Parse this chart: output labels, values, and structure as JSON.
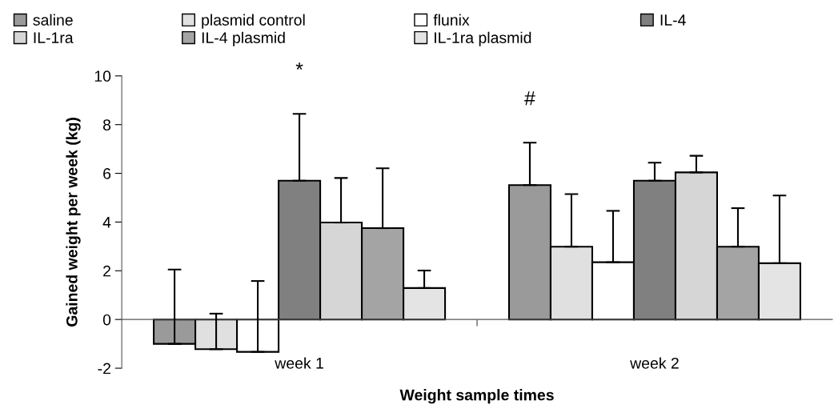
{
  "chart_data": {
    "type": "bar",
    "xlabel": "Weight sample times",
    "ylabel": "Gained weight per week (kg)",
    "categories": [
      "week 1",
      "week 2"
    ],
    "ylim": [
      -2,
      10
    ],
    "yticks": [
      -2,
      0,
      2,
      4,
      6,
      8,
      10
    ],
    "grid": false,
    "legend": "top",
    "series": [
      {
        "name": "saline",
        "color": "#9a9a9a",
        "values": [
          -1.0,
          5.52
        ],
        "errors": [
          [
            -1.0,
            2.05
          ],
          [
            5.52,
            7.26
          ]
        ]
      },
      {
        "name": "plasmid control",
        "color": "#e0e0e0",
        "values": [
          -1.22,
          2.99
        ],
        "errors": [
          [
            -1.22,
            0.24
          ],
          [
            2.99,
            5.15
          ]
        ]
      },
      {
        "name": "flunix",
        "color": "#ffffff",
        "values": [
          -1.33,
          2.35
        ],
        "errors": [
          [
            -1.33,
            1.58
          ],
          [
            2.35,
            4.46
          ]
        ]
      },
      {
        "name": "IL-4",
        "color": "#808080",
        "values": [
          5.7,
          5.7
        ],
        "errors": [
          [
            5.7,
            8.44
          ],
          [
            5.7,
            6.44
          ]
        ]
      },
      {
        "name": "IL-1ra",
        "color": "#d6d6d6",
        "values": [
          3.98,
          6.04
        ],
        "errors": [
          [
            3.98,
            5.81
          ],
          [
            6.04,
            6.72
          ]
        ]
      },
      {
        "name": "IL-4 plasmid",
        "color": "#a4a4a4",
        "values": [
          3.75,
          2.99
        ],
        "errors": [
          [
            3.75,
            6.21
          ],
          [
            2.99,
            4.57
          ]
        ]
      },
      {
        "name": "IL-1ra plasmid",
        "color": "#e4e4e4",
        "values": [
          1.29,
          2.31
        ],
        "errors": [
          [
            1.29,
            2.01
          ],
          [
            2.31,
            5.09
          ]
        ]
      }
    ],
    "annotations": [
      "*",
      "#"
    ]
  }
}
